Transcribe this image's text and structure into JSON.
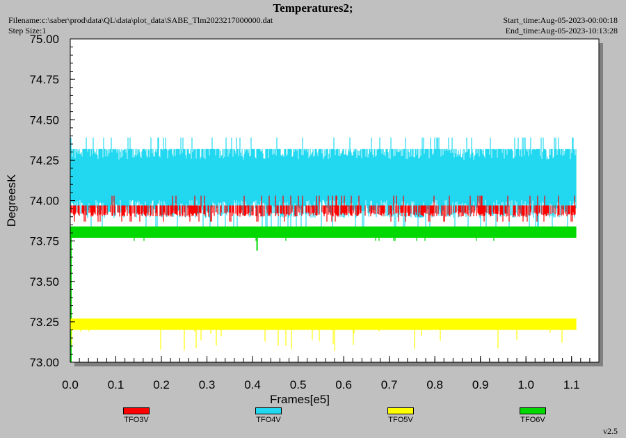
{
  "header": {
    "title": "Temperatures2;",
    "filename": "Filename:c:\\saber\\prod\\data\\QL\\data\\plot_data\\SABE_Tlm2023217000000.dat",
    "step_size": "Step Size:1",
    "start_time": "Start_time:Aug-05-2023-00:00:18",
    "end_time": "End_time:Aug-05-2023-10:13:28"
  },
  "footer": {
    "version": "v2.5"
  },
  "colors": {
    "TFO3V": "#ff0000",
    "TFO4V": "#22d8f0",
    "TFO5V": "#ffff00",
    "TFO6V": "#00d800"
  },
  "chart_data": {
    "type": "line",
    "title": "Temperatures2;",
    "xlabel": "Frames[e5]",
    "ylabel": "DegreesK",
    "xlim": [
      0.0,
      1.16
    ],
    "ylim": [
      73.0,
      75.0
    ],
    "x_ticks": [
      "0.0",
      "0.1",
      "0.2",
      "0.3",
      "0.4",
      "0.5",
      "0.6",
      "0.7",
      "0.8",
      "0.9",
      "1.0",
      "1.1"
    ],
    "y_ticks": [
      "73.00",
      "73.25",
      "73.50",
      "73.75",
      "74.00",
      "74.25",
      "74.50",
      "74.75",
      "75.00"
    ],
    "grid": false,
    "legend_position": "bottom",
    "series": [
      {
        "name": "TFO3V",
        "color": "#ff0000",
        "x_range": [
          0.0,
          1.11
        ],
        "typical_range": [
          73.9,
          73.97
        ],
        "min": 73.87,
        "max": 74.03
      },
      {
        "name": "TFO4V",
        "color": "#22d8f0",
        "x_range": [
          0.0,
          1.11
        ],
        "typical_range": [
          73.87,
          74.32
        ],
        "min": 73.77,
        "max": 74.39
      },
      {
        "name": "TFO5V",
        "color": "#ffff00",
        "x_range": [
          0.0,
          1.11
        ],
        "typical_range": [
          73.2,
          73.27
        ],
        "min": 73.06,
        "max": 73.28
      },
      {
        "name": "TFO6V",
        "color": "#00d800",
        "x_range": [
          0.0,
          1.11
        ],
        "typical_range": [
          73.77,
          73.84
        ],
        "min": 73.69,
        "max": 73.84
      }
    ]
  }
}
